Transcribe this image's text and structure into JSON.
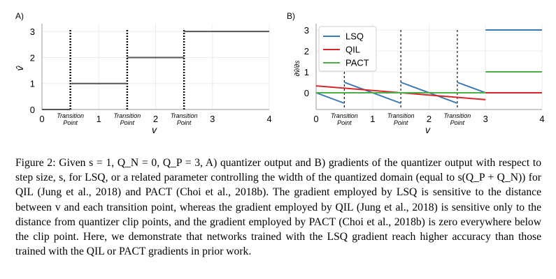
{
  "chart_data": [
    {
      "panel": "A)",
      "type": "line",
      "title": "",
      "xlabel": "v",
      "ylabel": "v̂",
      "xlim": [
        0,
        4
      ],
      "ylim": [
        0,
        3.3
      ],
      "xticks": [
        "0",
        "1",
        "2",
        "3",
        "4"
      ],
      "yticks": [
        "0",
        "1",
        "2",
        "3"
      ],
      "transition_points": [
        0.5,
        1.5,
        2.5
      ],
      "transition_label": [
        "Transition",
        "Point"
      ],
      "series": [
        {
          "name": "quantizer output",
          "color": "#555555",
          "segments": [
            [
              [
                0,
                0
              ],
              [
                0.5,
                0
              ]
            ],
            [
              [
                0.5,
                1
              ],
              [
                1.5,
                1
              ]
            ],
            [
              [
                1.5,
                2
              ],
              [
                2.5,
                2
              ]
            ],
            [
              [
                2.5,
                3
              ],
              [
                4,
                3
              ]
            ]
          ]
        }
      ]
    },
    {
      "panel": "B)",
      "type": "line",
      "title": "",
      "xlabel": "v",
      "ylabel": "∂v̂/∂s",
      "xlim": [
        0,
        4
      ],
      "ylim": [
        -0.8,
        3.3
      ],
      "xticks": [
        "0",
        "1",
        "2",
        "3",
        "4"
      ],
      "yticks": [
        "0",
        "1",
        "2",
        "3"
      ],
      "transition_points": [
        0.5,
        1.5,
        2.5
      ],
      "transition_label": [
        "Transition",
        "Point"
      ],
      "legend": {
        "position": "top-left"
      },
      "series": [
        {
          "name": "LSQ",
          "color": "#3b78b0",
          "segments": [
            [
              [
                0,
                0
              ],
              [
                0.5,
                -0.5
              ]
            ],
            [
              [
                0.5,
                0.5
              ],
              [
                1.5,
                -0.5
              ]
            ],
            [
              [
                1.5,
                0.5
              ],
              [
                2.5,
                -0.5
              ]
            ],
            [
              [
                2.5,
                0.5
              ],
              [
                3,
                0
              ]
            ],
            [
              [
                3,
                3
              ],
              [
                4,
                3
              ]
            ]
          ]
        },
        {
          "name": "QIL",
          "color": "#d62728",
          "segments": [
            [
              [
                0,
                0.33
              ],
              [
                3,
                -0.33
              ]
            ],
            [
              [
                3,
                0
              ],
              [
                4,
                0
              ]
            ]
          ]
        },
        {
          "name": "PACT",
          "color": "#4daf4a",
          "segments": [
            [
              [
                0,
                0
              ],
              [
                3,
                0
              ]
            ],
            [
              [
                3,
                1
              ],
              [
                4,
                1
              ]
            ]
          ]
        }
      ]
    }
  ],
  "caption": {
    "label": "Figure 2:",
    "text": " Given s = 1, Q_N = 0, Q_P = 3, A) quantizer output and B) gradients of the quantizer output with respect to step size, s, for LSQ, or a related parameter controlling the width of the quantized domain (equal to s(Q_P + Q_N)) for QIL (Jung et al., 2018) and PACT (Choi et al., 2018b). The gradient employed by LSQ is sensitive to the distance between v and each transition point, whereas the gradient employed by QIL (Jung et al., 2018) is sensitive only to the distance from quantizer clip points, and the gradient employed by PACT (Choi et al., 2018b) is zero everywhere below the clip point. Here, we demonstrate that networks trained with the LSQ gradient reach higher accuracy than those trained with the QIL or PACT gradients in prior work."
  }
}
